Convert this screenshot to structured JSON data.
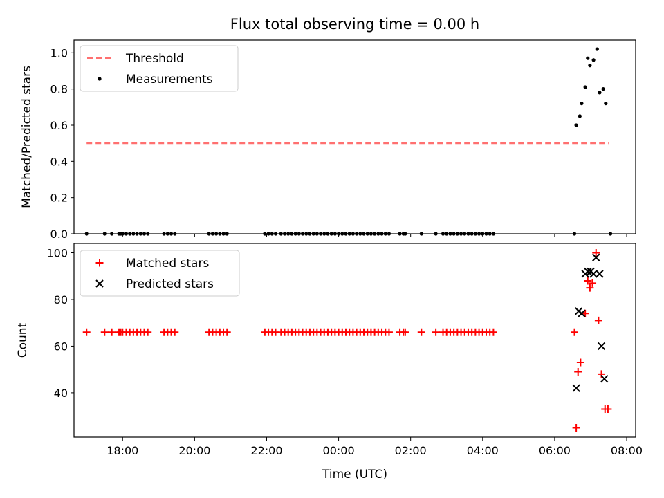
{
  "figure": {
    "title": "Flux total observing time = 0.00 h",
    "xlabel": "Time (UTC)"
  },
  "colors": {
    "threshold": "#ff7070",
    "measurements": "#000000",
    "matched": "#ff0000",
    "predicted": "#000000"
  },
  "chart_data": [
    {
      "type": "scatter",
      "panel": "top",
      "ylabel": "Matched/Predicted stars",
      "x_unit": "hours since 00:00 UTC",
      "xlim": [
        -7.35,
        8.25
      ],
      "ylim": [
        0,
        1.07
      ],
      "x_ticks": [
        {
          "v": -6,
          "label": "18:00"
        },
        {
          "v": -4,
          "label": "20:00"
        },
        {
          "v": -2,
          "label": "22:00"
        },
        {
          "v": 0,
          "label": "00:00"
        },
        {
          "v": 2,
          "label": "02:00"
        },
        {
          "v": 4,
          "label": "04:00"
        },
        {
          "v": 6,
          "label": "06:00"
        },
        {
          "v": 8,
          "label": "08:00"
        }
      ],
      "y_ticks": [
        {
          "v": 0,
          "label": "0.0"
        },
        {
          "v": 0.2,
          "label": "0.2"
        },
        {
          "v": 0.4,
          "label": "0.4"
        },
        {
          "v": 0.6,
          "label": "0.6"
        },
        {
          "v": 0.8,
          "label": "0.8"
        },
        {
          "v": 1.0,
          "label": "1.0"
        }
      ],
      "legend": {
        "position": "upper-left",
        "entries": [
          "Threshold",
          "Measurements"
        ]
      },
      "series": [
        {
          "name": "Threshold",
          "kind": "dashed-line",
          "points": [
            [
              -7.0,
              0.5
            ],
            [
              7.5,
              0.5
            ]
          ]
        },
        {
          "name": "Measurements",
          "kind": "dot",
          "points": [
            [
              -7.0,
              0
            ],
            [
              -6.5,
              0
            ],
            [
              -6.3,
              0
            ],
            [
              -6.1,
              0
            ],
            [
              -6.05,
              0
            ],
            [
              -6.0,
              0
            ],
            [
              -5.9,
              0
            ],
            [
              -5.8,
              0
            ],
            [
              -5.7,
              0
            ],
            [
              -5.6,
              0
            ],
            [
              -5.5,
              0
            ],
            [
              -5.4,
              0
            ],
            [
              -5.3,
              0
            ],
            [
              -4.85,
              0
            ],
            [
              -4.75,
              0
            ],
            [
              -4.65,
              0
            ],
            [
              -4.55,
              0
            ],
            [
              -3.6,
              0
            ],
            [
              -3.5,
              0
            ],
            [
              -3.4,
              0
            ],
            [
              -3.3,
              0
            ],
            [
              -3.2,
              0
            ],
            [
              -3.1,
              0
            ],
            [
              -2.05,
              0
            ],
            [
              -1.95,
              0
            ],
            [
              -1.85,
              0
            ],
            [
              -1.75,
              0
            ],
            [
              -1.6,
              0
            ],
            [
              -1.5,
              0
            ],
            [
              -1.4,
              0
            ],
            [
              -1.3,
              0
            ],
            [
              -1.2,
              0
            ],
            [
              -1.1,
              0
            ],
            [
              -1.0,
              0
            ],
            [
              -0.9,
              0
            ],
            [
              -0.8,
              0
            ],
            [
              -0.7,
              0
            ],
            [
              -0.6,
              0
            ],
            [
              -0.5,
              0
            ],
            [
              -0.4,
              0
            ],
            [
              -0.3,
              0
            ],
            [
              -0.2,
              0
            ],
            [
              -0.1,
              0
            ],
            [
              0.0,
              0
            ],
            [
              0.1,
              0
            ],
            [
              0.2,
              0
            ],
            [
              0.3,
              0
            ],
            [
              0.4,
              0
            ],
            [
              0.5,
              0
            ],
            [
              0.6,
              0
            ],
            [
              0.7,
              0
            ],
            [
              0.8,
              0
            ],
            [
              0.9,
              0
            ],
            [
              1.0,
              0
            ],
            [
              1.1,
              0
            ],
            [
              1.2,
              0
            ],
            [
              1.3,
              0
            ],
            [
              1.4,
              0
            ],
            [
              1.7,
              0
            ],
            [
              1.8,
              0
            ],
            [
              1.85,
              0
            ],
            [
              2.3,
              0
            ],
            [
              2.7,
              0
            ],
            [
              2.9,
              0
            ],
            [
              3.0,
              0
            ],
            [
              3.1,
              0
            ],
            [
              3.2,
              0
            ],
            [
              3.3,
              0
            ],
            [
              3.4,
              0
            ],
            [
              3.5,
              0
            ],
            [
              3.6,
              0
            ],
            [
              3.7,
              0
            ],
            [
              3.8,
              0
            ],
            [
              3.9,
              0
            ],
            [
              4.0,
              0
            ],
            [
              4.1,
              0
            ],
            [
              4.2,
              0
            ],
            [
              4.3,
              0
            ],
            [
              6.55,
              0
            ],
            [
              7.55,
              0
            ],
            [
              6.6,
              0.6
            ],
            [
              6.7,
              0.65
            ],
            [
              6.75,
              0.72
            ],
            [
              6.85,
              0.81
            ],
            [
              6.92,
              0.97
            ],
            [
              6.98,
              0.93
            ],
            [
              7.08,
              0.96
            ],
            [
              7.18,
              1.02
            ],
            [
              7.25,
              0.78
            ],
            [
              7.35,
              0.8
            ],
            [
              7.42,
              0.72
            ]
          ]
        }
      ]
    },
    {
      "type": "scatter",
      "panel": "bottom",
      "ylabel": "Count",
      "x_unit": "hours since 00:00 UTC",
      "xlim": [
        -7.35,
        8.25
      ],
      "ylim": [
        21,
        104
      ],
      "x_ticks": [
        {
          "v": -6,
          "label": "18:00"
        },
        {
          "v": -4,
          "label": "20:00"
        },
        {
          "v": -2,
          "label": "22:00"
        },
        {
          "v": 0,
          "label": "00:00"
        },
        {
          "v": 2,
          "label": "02:00"
        },
        {
          "v": 4,
          "label": "04:00"
        },
        {
          "v": 6,
          "label": "06:00"
        },
        {
          "v": 8,
          "label": "08:00"
        }
      ],
      "y_ticks": [
        {
          "v": 40,
          "label": "40"
        },
        {
          "v": 60,
          "label": "60"
        },
        {
          "v": 80,
          "label": "80"
        },
        {
          "v": 100,
          "label": "100"
        }
      ],
      "legend": {
        "position": "upper-left",
        "entries": [
          "Matched stars",
          "Predicted stars"
        ]
      },
      "series": [
        {
          "name": "Matched stars",
          "kind": "plus",
          "points": [
            [
              -7.0,
              66
            ],
            [
              -6.5,
              66
            ],
            [
              -6.3,
              66
            ],
            [
              -6.1,
              66
            ],
            [
              -6.05,
              66
            ],
            [
              -6.0,
              66
            ],
            [
              -5.9,
              66
            ],
            [
              -5.8,
              66
            ],
            [
              -5.7,
              66
            ],
            [
              -5.6,
              66
            ],
            [
              -5.5,
              66
            ],
            [
              -5.4,
              66
            ],
            [
              -5.3,
              66
            ],
            [
              -4.85,
              66
            ],
            [
              -4.75,
              66
            ],
            [
              -4.65,
              66
            ],
            [
              -4.55,
              66
            ],
            [
              -3.6,
              66
            ],
            [
              -3.5,
              66
            ],
            [
              -3.4,
              66
            ],
            [
              -3.3,
              66
            ],
            [
              -3.2,
              66
            ],
            [
              -3.1,
              66
            ],
            [
              -2.05,
              66
            ],
            [
              -1.95,
              66
            ],
            [
              -1.85,
              66
            ],
            [
              -1.75,
              66
            ],
            [
              -1.6,
              66
            ],
            [
              -1.5,
              66
            ],
            [
              -1.4,
              66
            ],
            [
              -1.3,
              66
            ],
            [
              -1.2,
              66
            ],
            [
              -1.1,
              66
            ],
            [
              -1.0,
              66
            ],
            [
              -0.9,
              66
            ],
            [
              -0.8,
              66
            ],
            [
              -0.7,
              66
            ],
            [
              -0.6,
              66
            ],
            [
              -0.5,
              66
            ],
            [
              -0.4,
              66
            ],
            [
              -0.3,
              66
            ],
            [
              -0.2,
              66
            ],
            [
              -0.1,
              66
            ],
            [
              0.0,
              66
            ],
            [
              0.1,
              66
            ],
            [
              0.2,
              66
            ],
            [
              0.3,
              66
            ],
            [
              0.4,
              66
            ],
            [
              0.5,
              66
            ],
            [
              0.6,
              66
            ],
            [
              0.7,
              66
            ],
            [
              0.8,
              66
            ],
            [
              0.9,
              66
            ],
            [
              1.0,
              66
            ],
            [
              1.1,
              66
            ],
            [
              1.2,
              66
            ],
            [
              1.3,
              66
            ],
            [
              1.4,
              66
            ],
            [
              1.7,
              66
            ],
            [
              1.8,
              66
            ],
            [
              1.85,
              66
            ],
            [
              2.3,
              66
            ],
            [
              2.7,
              66
            ],
            [
              2.9,
              66
            ],
            [
              3.0,
              66
            ],
            [
              3.1,
              66
            ],
            [
              3.2,
              66
            ],
            [
              3.3,
              66
            ],
            [
              3.4,
              66
            ],
            [
              3.5,
              66
            ],
            [
              3.6,
              66
            ],
            [
              3.7,
              66
            ],
            [
              3.8,
              66
            ],
            [
              3.9,
              66
            ],
            [
              4.0,
              66
            ],
            [
              4.1,
              66
            ],
            [
              4.2,
              66
            ],
            [
              4.3,
              66
            ],
            [
              6.55,
              66
            ],
            [
              6.6,
              25
            ],
            [
              6.65,
              49
            ],
            [
              6.72,
              53
            ],
            [
              6.85,
              74
            ],
            [
              6.92,
              88
            ],
            [
              6.98,
              85
            ],
            [
              7.05,
              87
            ],
            [
              7.15,
              100
            ],
            [
              7.22,
              71
            ],
            [
              7.3,
              48
            ],
            [
              7.4,
              33
            ],
            [
              7.48,
              33
            ]
          ]
        },
        {
          "name": "Predicted stars",
          "kind": "cross",
          "points": [
            [
              6.6,
              42
            ],
            [
              6.67,
              75
            ],
            [
              6.75,
              74
            ],
            [
              6.85,
              91
            ],
            [
              6.92,
              92
            ],
            [
              7.0,
              92
            ],
            [
              7.08,
              91
            ],
            [
              7.15,
              98
            ],
            [
              7.25,
              91
            ],
            [
              7.3,
              60
            ],
            [
              7.38,
              46
            ]
          ]
        }
      ]
    }
  ]
}
